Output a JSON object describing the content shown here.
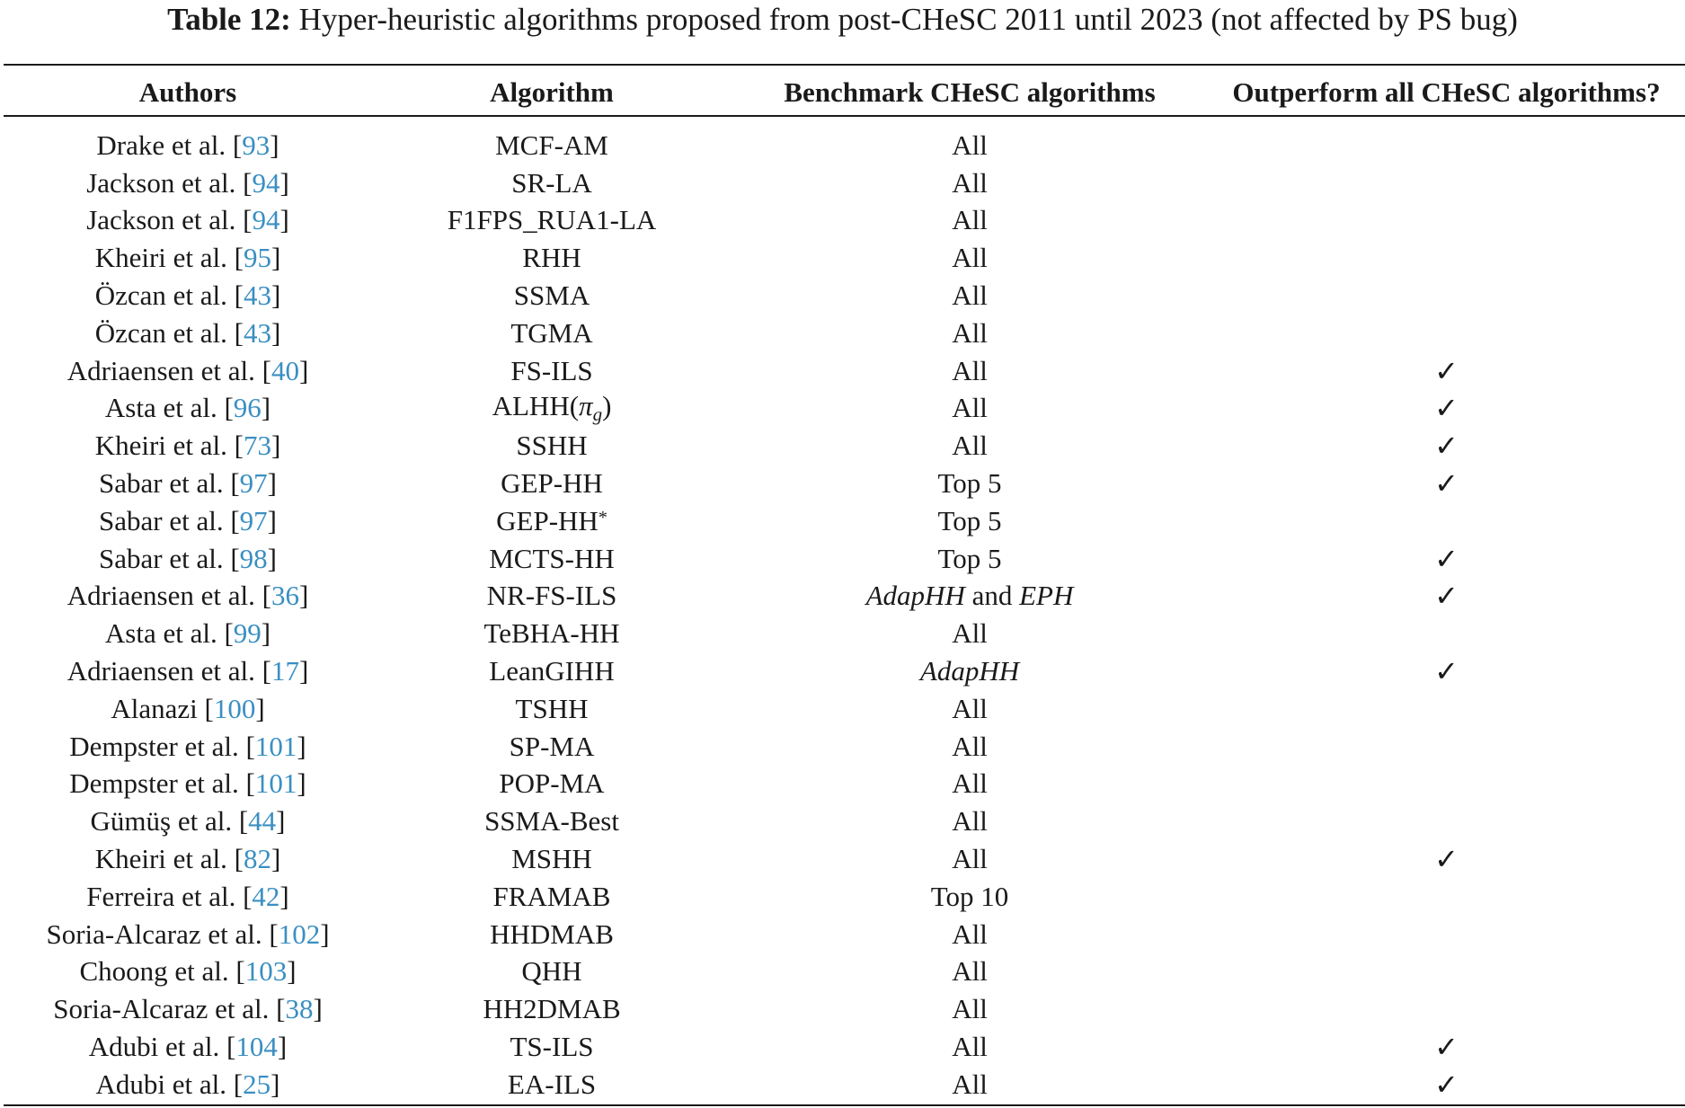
{
  "caption": {
    "label": "Table 12:",
    "text": "Hyper-heuristic algorithms proposed from post-CHeSC 2011 until 2023 (not affected by PS bug)"
  },
  "table": {
    "headers": [
      "Authors",
      "Algorithm",
      "Benchmark CHeSC algorithms",
      "Outperform all CHeSC algorithms?"
    ],
    "rows": [
      {
        "author": "Drake et al.",
        "ref": "93",
        "algorithm": "MCF-AM",
        "benchmark": "All",
        "outperform": ""
      },
      {
        "author": "Jackson et al.",
        "ref": "94",
        "algorithm": "SR-LA",
        "benchmark": "All",
        "outperform": ""
      },
      {
        "author": "Jackson et al.",
        "ref": "94",
        "algorithm": "F1FPS_RUA1-LA",
        "benchmark": "All",
        "outperform": ""
      },
      {
        "author": "Kheiri et al.",
        "ref": "95",
        "algorithm": "RHH",
        "benchmark": "All",
        "outperform": ""
      },
      {
        "author": "Özcan et al.",
        "ref": "43",
        "algorithm": "SSMA",
        "benchmark": "All",
        "outperform": ""
      },
      {
        "author": "Özcan et al.",
        "ref": "43",
        "algorithm": "TGMA",
        "benchmark": "All",
        "outperform": ""
      },
      {
        "author": "Adriaensen et al.",
        "ref": "40",
        "algorithm": "FS-ILS",
        "benchmark": "All",
        "outperform": "✓"
      },
      {
        "author": "Asta et al.",
        "ref": "96",
        "algorithm": "ALHH(",
        "algorithm_pi": "π",
        "algorithm_sub": "g",
        "algorithm_close": ")",
        "benchmark": "All",
        "outperform": "✓"
      },
      {
        "author": "Kheiri et al.",
        "ref": "73",
        "algorithm": "SSHH",
        "benchmark": "All",
        "outperform": "✓"
      },
      {
        "author": "Sabar et al.",
        "ref": "97",
        "algorithm": "GEP-HH",
        "benchmark": "Top 5",
        "outperform": "✓"
      },
      {
        "author": "Sabar et al.",
        "ref": "97",
        "algorithm": "GEP-HH",
        "algorithm_star": "*",
        "benchmark": "Top 5",
        "outperform": ""
      },
      {
        "author": "Sabar et al.",
        "ref": "98",
        "algorithm": "MCTS-HH",
        "benchmark": "Top 5",
        "outperform": "✓"
      },
      {
        "author": "Adriaensen et al.",
        "ref": "36",
        "algorithm": "NR-FS-ILS",
        "benchmark_a": "AdapHH",
        "benchmark_and": " and ",
        "benchmark_b": "EPH",
        "outperform": "✓"
      },
      {
        "author": "Asta et al.",
        "ref": "99",
        "algorithm": "TeBHA-HH",
        "benchmark": "All",
        "outperform": ""
      },
      {
        "author": "Adriaensen et al.",
        "ref": "17",
        "algorithm": "LeanGIHH",
        "benchmark_a": "AdapHH",
        "outperform": "✓"
      },
      {
        "author": "Alanazi",
        "ref": "100",
        "algorithm": "TSHH",
        "benchmark": "All",
        "outperform": ""
      },
      {
        "author": "Dempster et al.",
        "ref": "101",
        "algorithm": "SP-MA",
        "benchmark": "All",
        "outperform": ""
      },
      {
        "author": "Dempster et al.",
        "ref": "101",
        "algorithm": "POP-MA",
        "benchmark": "All",
        "outperform": ""
      },
      {
        "author": "Gümüş et al.",
        "ref": "44",
        "algorithm": "SSMA-Best",
        "benchmark": "All",
        "outperform": ""
      },
      {
        "author": "Kheiri et al.",
        "ref": "82",
        "algorithm": "MSHH",
        "benchmark": "All",
        "outperform": "✓"
      },
      {
        "author": "Ferreira et al.",
        "ref": "42",
        "algorithm": "FRAMAB",
        "benchmark": "Top 10",
        "outperform": ""
      },
      {
        "author": "Soria-Alcaraz et al.",
        "ref": "102",
        "algorithm": "HHDMAB",
        "benchmark": "All",
        "outperform": ""
      },
      {
        "author": "Choong et al.",
        "ref": "103",
        "algorithm": "QHH",
        "benchmark": "All",
        "outperform": ""
      },
      {
        "author": "Soria-Alcaraz et al.",
        "ref": "38",
        "algorithm": "HH2DMAB",
        "benchmark": "All",
        "outperform": ""
      },
      {
        "author": "Adubi et al.",
        "ref": "104",
        "algorithm": "TS-ILS",
        "benchmark": "All",
        "outperform": "✓"
      },
      {
        "author": "Adubi et al.",
        "ref": "25",
        "algorithm": "EA-ILS",
        "benchmark": "All",
        "outperform": "✓"
      }
    ]
  }
}
